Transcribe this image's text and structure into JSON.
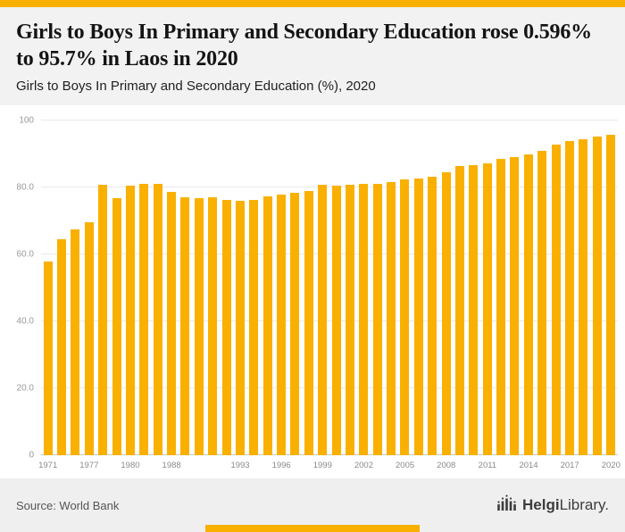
{
  "page": {
    "accent_color": "#F9B000"
  },
  "header": {
    "title": "Girls to Boys In Primary and Secondary Education rose 0.596% to 95.7% in Laos in 2020",
    "subtitle": "Girls to Boys In Primary and Secondary Education (%), 2020"
  },
  "chart_data": {
    "type": "bar",
    "title": "Girls to Boys In Primary and Secondary Education rose 0.596% to 95.7% in Laos in 2020",
    "subtitle": "Girls to Boys In Primary and Secondary Education (%), 2020",
    "ylabel": "",
    "xlabel": "",
    "ylim": [
      0,
      100
    ],
    "grid": true,
    "legend": "none",
    "bar_color": "#F9B000",
    "ytick_values": [
      0,
      20,
      40,
      60,
      80,
      100
    ],
    "ytick_labels": [
      "0",
      "20.0",
      "40.0",
      "60.0",
      "80.0",
      "100"
    ],
    "categories": [
      "1971",
      "1975",
      "1976",
      "1977",
      "1978",
      "1979",
      "1980",
      "1981",
      "1982",
      "1988",
      "1989",
      "1990",
      "1991",
      "1992",
      "1993",
      "1994",
      "1995",
      "1996",
      "1997",
      "1998",
      "1999",
      "2000",
      "2001",
      "2002",
      "2003",
      "2004",
      "2005",
      "2006",
      "2007",
      "2008",
      "2009",
      "2010",
      "2011",
      "2012",
      "2013",
      "2014",
      "2015",
      "2016",
      "2017",
      "2018",
      "2019",
      "2020"
    ],
    "values": [
      57.8,
      64.6,
      67.4,
      69.5,
      80.9,
      76.9,
      80.6,
      81.2,
      81.2,
      78.6,
      77.1,
      76.9,
      77.0,
      76.4,
      76.1,
      76.4,
      77.4,
      77.9,
      78.4,
      79.0,
      80.9,
      80.6,
      80.8,
      81.0,
      81.2,
      81.6,
      82.4,
      82.7,
      83.1,
      84.5,
      86.3,
      86.6,
      87.2,
      88.6,
      89.2,
      89.8,
      91.0,
      92.9,
      94.0,
      94.3,
      95.1,
      95.7
    ],
    "xtick_labels": [
      "1971",
      "1977",
      "1980",
      "1988",
      "1993",
      "1996",
      "1999",
      "2002",
      "2005",
      "2008",
      "2011",
      "2014",
      "2017",
      "2020"
    ],
    "latest_value": "95.7",
    "latest_change_pct": "0.596"
  },
  "footer": {
    "source": "Source: World Bank",
    "logo": {
      "bold": "Helgi",
      "rest": "Library."
    }
  }
}
